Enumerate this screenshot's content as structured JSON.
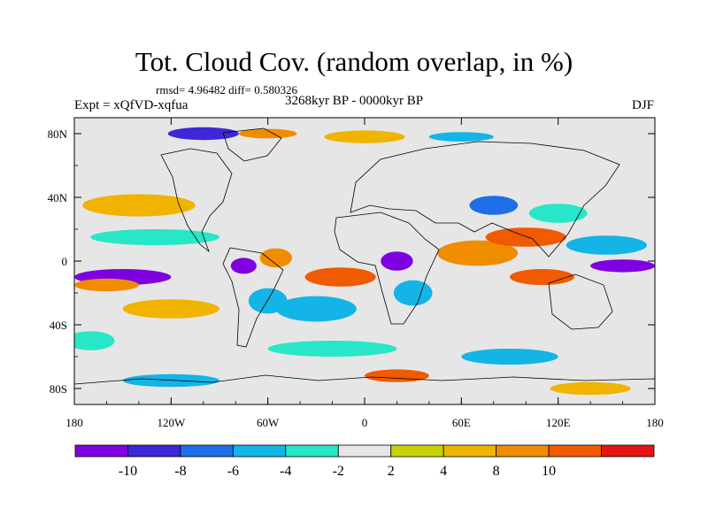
{
  "title": "Tot. Cloud Cov. (random overlap, in %)",
  "stats": "rmsd= 4.96482 diff= 0.580326",
  "experiment": "Expt = xQfVD-xqfua",
  "period": "3268kyr BP - 0000kyr BP",
  "season": "DJF",
  "map": {
    "projection": "cylindrical equidistant",
    "lon_range": [
      -180,
      180
    ],
    "lat_range": [
      -90,
      90
    ],
    "x_ticks": [
      {
        "lon": -180,
        "label": "180"
      },
      {
        "lon": -120,
        "label": "120W"
      },
      {
        "lon": -60,
        "label": "60W"
      },
      {
        "lon": 0,
        "label": "0"
      },
      {
        "lon": 60,
        "label": "60E"
      },
      {
        "lon": 120,
        "label": "120E"
      },
      {
        "lon": 180,
        "label": "180"
      }
    ],
    "y_ticks": [
      {
        "lat": 80,
        "label": "80N"
      },
      {
        "lat": 40,
        "label": "40N"
      },
      {
        "lat": 0,
        "label": "0"
      },
      {
        "lat": -40,
        "label": "40S"
      },
      {
        "lat": -80,
        "label": "80S"
      }
    ]
  },
  "colorbar": {
    "colors": [
      "#7f00e0",
      "#3c28d4",
      "#1e6ee6",
      "#14b4e6",
      "#28e6c8",
      "#e6e6e6",
      "#c8d200",
      "#f0b400",
      "#f08c00",
      "#f05a00",
      "#e61414"
    ],
    "labels": [
      {
        "after_bin": 1,
        "text": "-10"
      },
      {
        "after_bin": 2,
        "text": "-8"
      },
      {
        "after_bin": 3,
        "text": "-6"
      },
      {
        "after_bin": 4,
        "text": "-4"
      },
      {
        "after_bin": 5,
        "text": "-2"
      },
      {
        "after_bin": 6,
        "text": "2"
      },
      {
        "after_bin": 7,
        "text": "4"
      },
      {
        "after_bin": 8,
        "text": "8"
      },
      {
        "after_bin": 9,
        "text": "10"
      }
    ]
  },
  "anomaly_features": [
    {
      "lon": -150,
      "lat": -10,
      "rx": 30,
      "ry": 5,
      "bin": 0
    },
    {
      "lon": -140,
      "lat": 35,
      "rx": 35,
      "ry": 7,
      "bin": 7
    },
    {
      "lon": -160,
      "lat": -15,
      "rx": 20,
      "ry": 4,
      "bin": 8
    },
    {
      "lon": -120,
      "lat": -30,
      "rx": 30,
      "ry": 6,
      "bin": 7
    },
    {
      "lon": -130,
      "lat": 15,
      "rx": 40,
      "ry": 5,
      "bin": 4
    },
    {
      "lon": -75,
      "lat": -3,
      "rx": 8,
      "ry": 5,
      "bin": 0
    },
    {
      "lon": -55,
      "lat": 2,
      "rx": 10,
      "ry": 6,
      "bin": 8
    },
    {
      "lon": -60,
      "lat": -25,
      "rx": 12,
      "ry": 8,
      "bin": 3
    },
    {
      "lon": -30,
      "lat": -30,
      "rx": 25,
      "ry": 8,
      "bin": 3
    },
    {
      "lon": -15,
      "lat": -10,
      "rx": 22,
      "ry": 6,
      "bin": 9
    },
    {
      "lon": 20,
      "lat": 0,
      "rx": 10,
      "ry": 6,
      "bin": 0
    },
    {
      "lon": 30,
      "lat": -20,
      "rx": 12,
      "ry": 8,
      "bin": 3
    },
    {
      "lon": 70,
      "lat": 5,
      "rx": 25,
      "ry": 8,
      "bin": 8
    },
    {
      "lon": 100,
      "lat": 15,
      "rx": 25,
      "ry": 6,
      "bin": 9
    },
    {
      "lon": 110,
      "lat": -10,
      "rx": 20,
      "ry": 5,
      "bin": 9
    },
    {
      "lon": 160,
      "lat": -3,
      "rx": 20,
      "ry": 4,
      "bin": 0
    },
    {
      "lon": 150,
      "lat": 10,
      "rx": 25,
      "ry": 6,
      "bin": 3
    },
    {
      "lon": 80,
      "lat": 35,
      "rx": 15,
      "ry": 6,
      "bin": 2
    },
    {
      "lon": 120,
      "lat": 30,
      "rx": 18,
      "ry": 6,
      "bin": 4
    },
    {
      "lon": -100,
      "lat": 80,
      "rx": 22,
      "ry": 4,
      "bin": 1
    },
    {
      "lon": -60,
      "lat": 80,
      "rx": 18,
      "ry": 3,
      "bin": 8
    },
    {
      "lon": 0,
      "lat": 78,
      "rx": 25,
      "ry": 4,
      "bin": 7
    },
    {
      "lon": 60,
      "lat": 78,
      "rx": 20,
      "ry": 3,
      "bin": 3
    },
    {
      "lon": 20,
      "lat": -72,
      "rx": 20,
      "ry": 4,
      "bin": 9
    },
    {
      "lon": -120,
      "lat": -75,
      "rx": 30,
      "ry": 4,
      "bin": 3
    },
    {
      "lon": 140,
      "lat": -80,
      "rx": 25,
      "ry": 4,
      "bin": 7
    },
    {
      "lon": -20,
      "lat": -55,
      "rx": 40,
      "ry": 5,
      "bin": 4
    },
    {
      "lon": 90,
      "lat": -60,
      "rx": 30,
      "ry": 5,
      "bin": 3
    },
    {
      "lon": -170,
      "lat": -50,
      "rx": 15,
      "ry": 6,
      "bin": 4
    }
  ]
}
